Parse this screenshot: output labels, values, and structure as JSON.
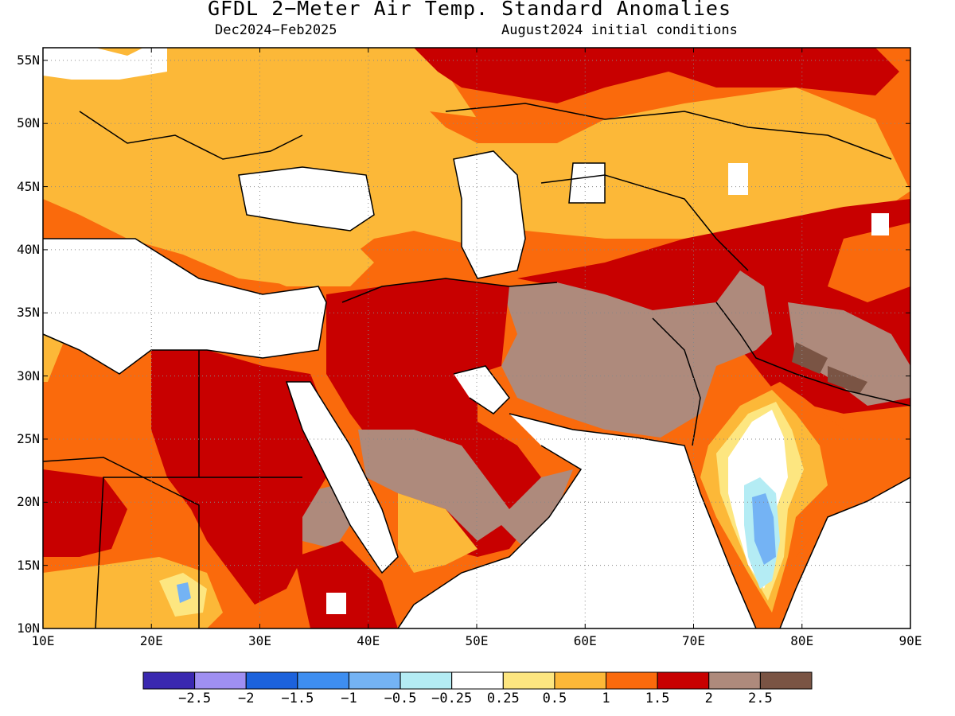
{
  "header": {
    "title": "GFDL 2−Meter Air Temp. Standard Anomalies",
    "period": "Dec2024−Feb2025",
    "init": "August2024 initial conditions"
  },
  "axes": {
    "lat_labels": [
      "55N",
      "50N",
      "45N",
      "40N",
      "35N",
      "30N",
      "25N",
      "20N",
      "15N",
      "10N"
    ],
    "lon_labels": [
      "10E",
      "20E",
      "30E",
      "40E",
      "50E",
      "60E",
      "70E",
      "80E",
      "90E"
    ]
  },
  "colorbar": {
    "colors": [
      "#3a28b0",
      "#9f8ff2",
      "#1c62dc",
      "#3e8ef0",
      "#74b3f4",
      "#b4ecf4",
      "#ffffff",
      "#fde680",
      "#fcb838",
      "#fa6a0c",
      "#c80000",
      "#ae8a7c",
      "#7a5444"
    ],
    "labels": [
      "−2.5",
      "−2",
      "−1.5",
      "−1",
      "−0.5",
      "−0.25",
      "0.25",
      "0.5",
      "1",
      "1.5",
      "2",
      "2.5"
    ]
  },
  "map_data": {
    "variable": "2-meter air temperature standardized anomaly",
    "lon_range": [
      10,
      90
    ],
    "lat_range": [
      10,
      56
    ],
    "lat_ticks": [
      55,
      50,
      45,
      40,
      35,
      30,
      25,
      20,
      15,
      10
    ],
    "lon_ticks": [
      10,
      20,
      30,
      40,
      50,
      60,
      70,
      80,
      90
    ],
    "grid_dotted": true
  }
}
